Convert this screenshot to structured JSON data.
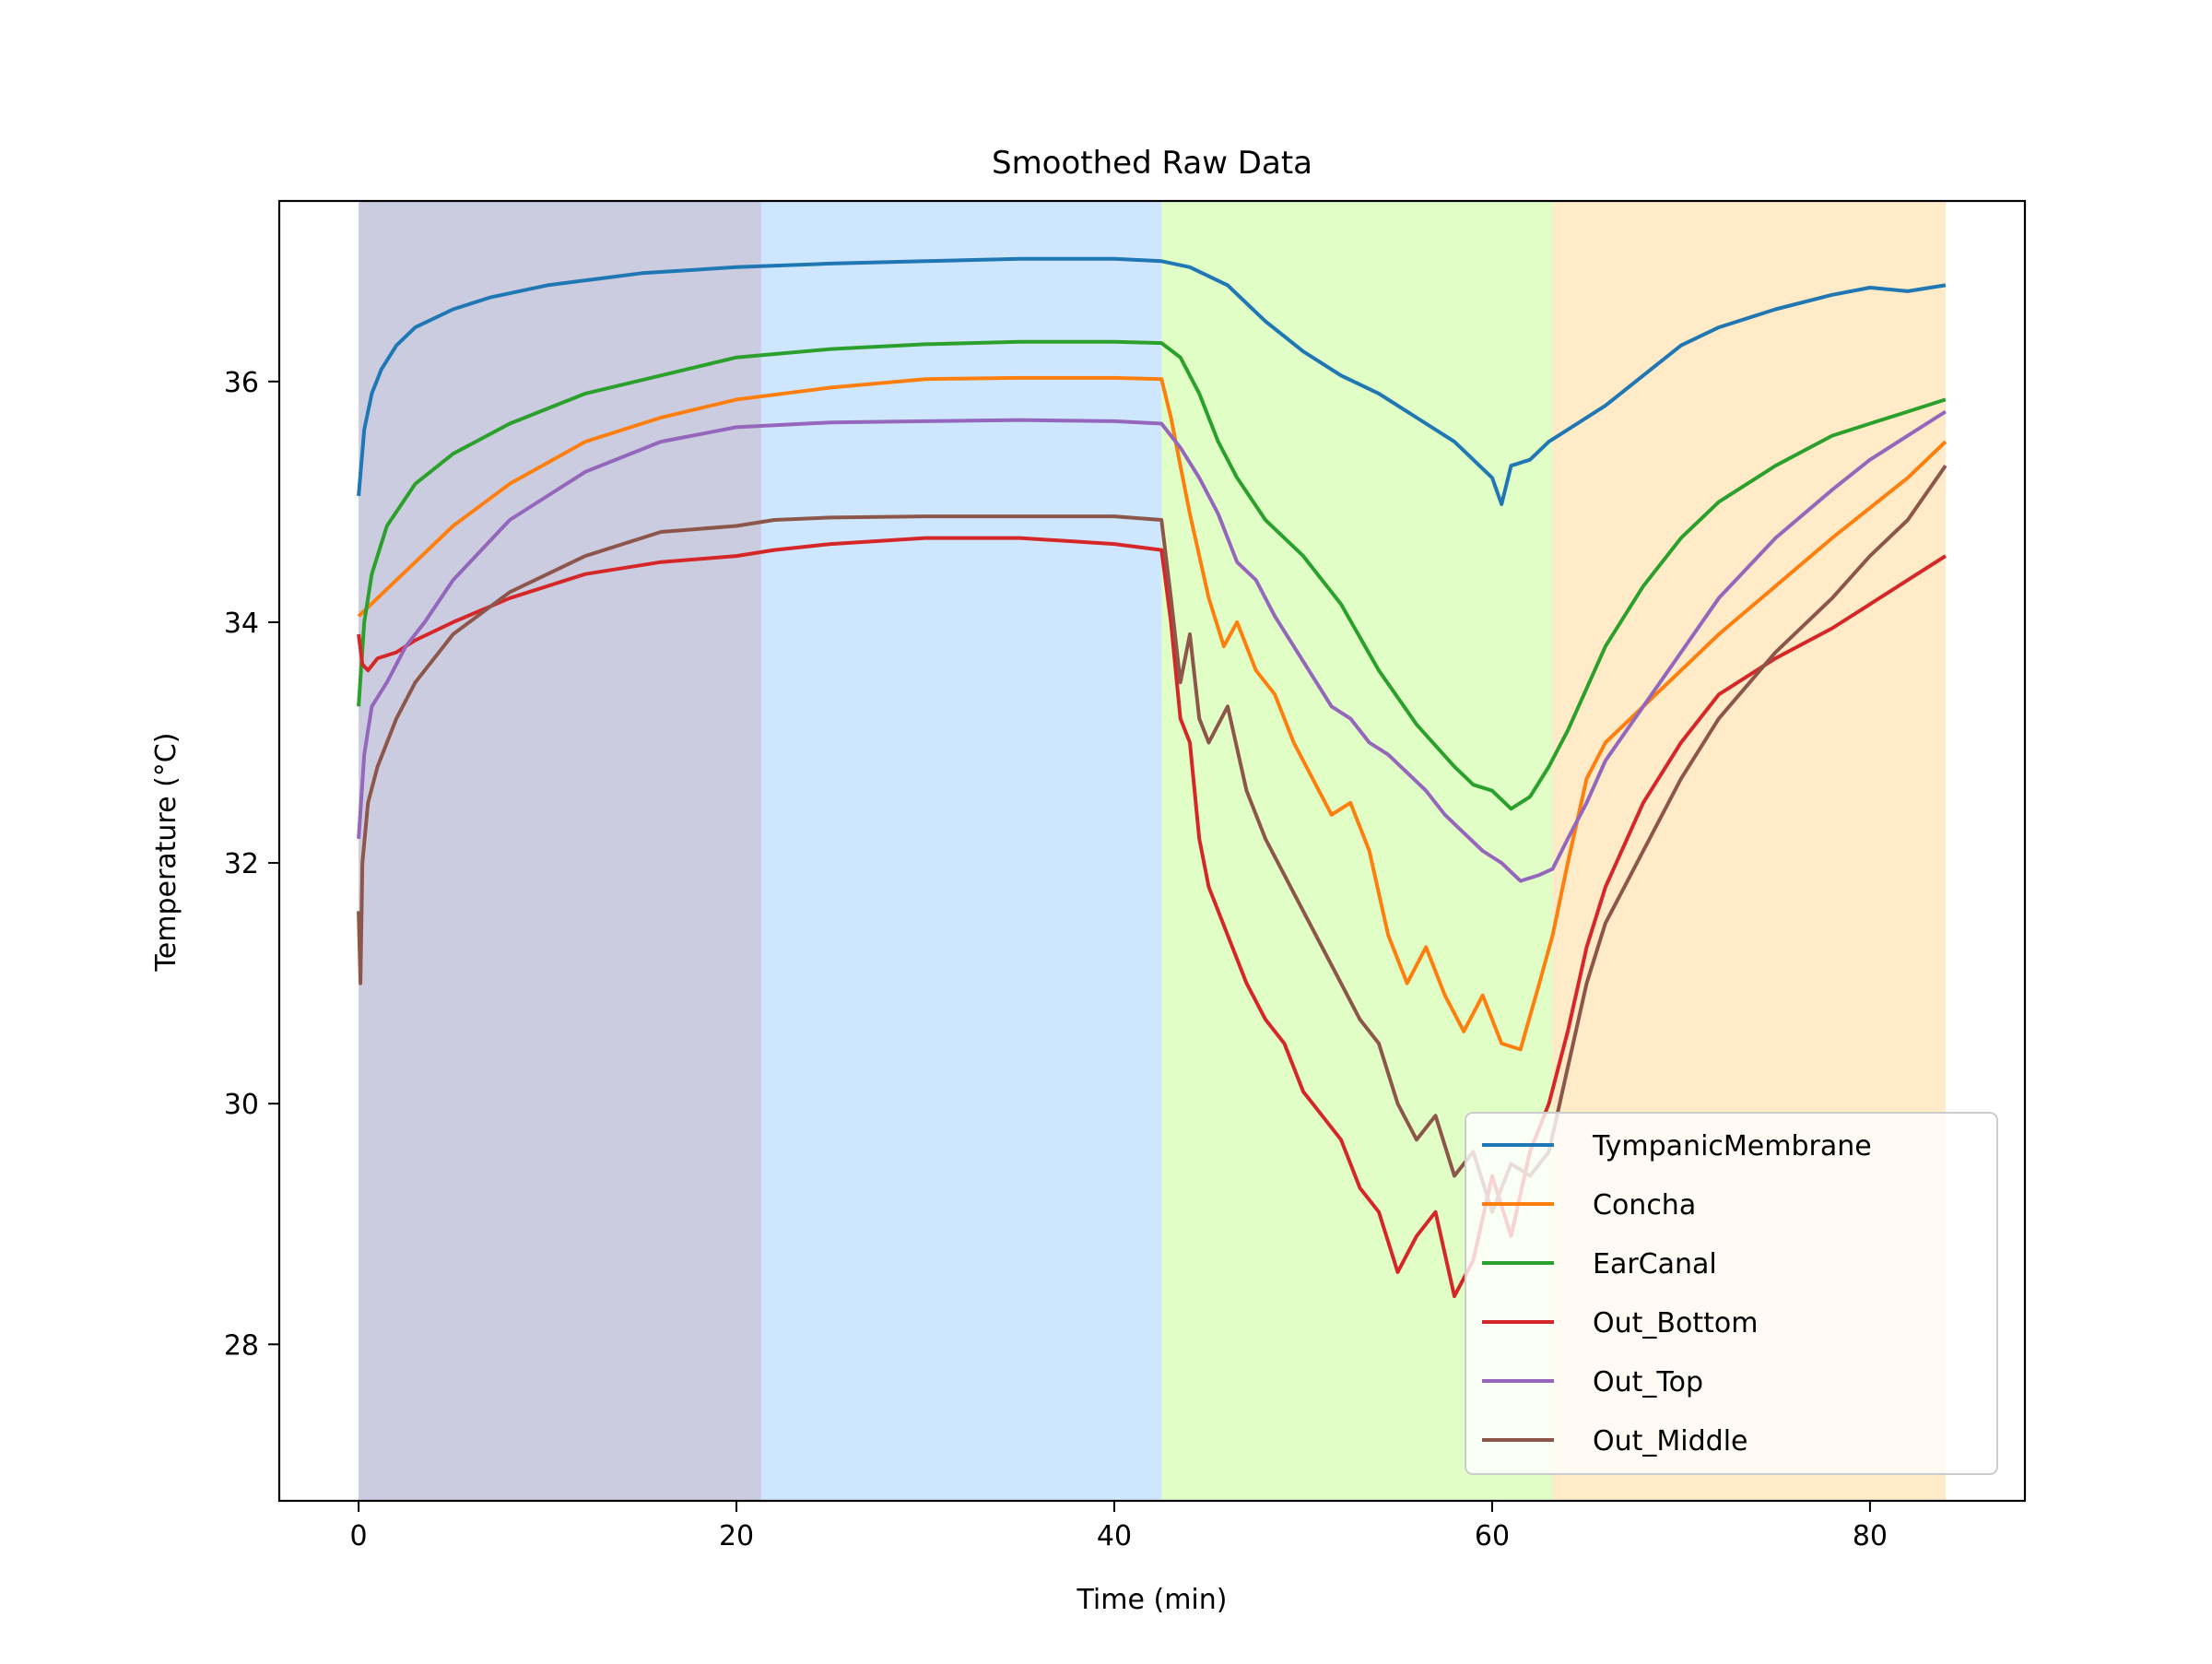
{
  "chart_data": {
    "type": "line",
    "title": "Smoothed Raw Data",
    "xlabel": "Time (min)",
    "ylabel": "Temperature (°C)",
    "xlim": [
      -4.2,
      88.2
    ],
    "ylim": [
      26.7,
      37.5
    ],
    "xticks": [
      0,
      20,
      40,
      60,
      80
    ],
    "xtick_labels": [
      "0",
      "20",
      "40",
      "60",
      "80"
    ],
    "yticks": [
      28,
      30,
      32,
      34,
      36
    ],
    "ytick_labels": [
      "28",
      "30",
      "32",
      "34",
      "36"
    ],
    "grid": false,
    "legend_position": "lower-right",
    "phase_bands": [
      {
        "x_start": 0.0,
        "x_end": 21.3,
        "color": "#191970",
        "alpha": 0.22
      },
      {
        "x_start": 21.3,
        "x_end": 42.5,
        "color": "#1e90ff",
        "alpha": 0.22
      },
      {
        "x_start": 42.5,
        "x_end": 63.2,
        "color": "#7cfc00",
        "alpha": 0.22
      },
      {
        "x_start": 63.2,
        "x_end": 84.0,
        "color": "#ffa500",
        "alpha": 0.22
      }
    ],
    "series": [
      {
        "name": "TympanicMembrane",
        "color": "#1f77b4",
        "x": [
          0,
          0.3,
          0.7,
          1.2,
          2,
          3,
          5,
          7,
          10,
          15,
          20,
          25,
          30,
          35,
          40,
          42.5,
          44,
          46,
          48,
          50,
          52,
          54,
          56,
          58,
          59,
          60,
          60.5,
          61,
          62,
          63,
          64,
          66,
          68,
          70,
          72,
          75,
          78,
          80,
          82,
          84
        ],
        "y": [
          35.05,
          35.6,
          35.9,
          36.1,
          36.3,
          36.45,
          36.6,
          36.7,
          36.8,
          36.9,
          36.95,
          36.98,
          37.0,
          37.02,
          37.02,
          37.0,
          36.95,
          36.8,
          36.5,
          36.25,
          36.05,
          35.9,
          35.7,
          35.5,
          35.35,
          35.2,
          34.98,
          35.3,
          35.35,
          35.5,
          35.6,
          35.8,
          36.05,
          36.3,
          36.45,
          36.6,
          36.72,
          36.78,
          36.75,
          36.8
        ]
      },
      {
        "name": "Concha",
        "color": "#ff7f0e",
        "x": [
          0,
          1,
          3,
          5,
          8,
          12,
          16,
          20,
          25,
          30,
          35,
          40,
          42.5,
          43,
          43.5,
          44,
          45,
          45.8,
          46.5,
          47.5,
          48.5,
          49.5,
          50.5,
          51.5,
          52.5,
          53.5,
          54.5,
          55.5,
          56.5,
          57.5,
          58.5,
          59.5,
          60.5,
          61.5,
          62.5,
          63.2,
          64,
          65,
          66,
          68,
          70,
          72,
          75,
          78,
          80,
          82,
          84
        ],
        "y": [
          34.05,
          34.2,
          34.5,
          34.8,
          35.15,
          35.5,
          35.7,
          35.85,
          35.95,
          36.02,
          36.03,
          36.03,
          36.02,
          35.7,
          35.3,
          34.9,
          34.2,
          33.8,
          34.0,
          33.6,
          33.4,
          33.0,
          32.7,
          32.4,
          32.5,
          32.1,
          31.4,
          31.0,
          31.3,
          30.9,
          30.6,
          30.9,
          30.5,
          30.45,
          31.0,
          31.4,
          32.0,
          32.7,
          33.0,
          33.3,
          33.6,
          33.9,
          34.3,
          34.7,
          34.95,
          35.2,
          35.5
        ]
      },
      {
        "name": "EarCanal",
        "color": "#2ca02c",
        "x": [
          0,
          0.3,
          0.7,
          1.5,
          3,
          5,
          8,
          12,
          16,
          20,
          25,
          30,
          35,
          40,
          42.5,
          43.5,
          44.5,
          45.5,
          46.5,
          48,
          50,
          52,
          54,
          56,
          58,
          59,
          60,
          61,
          62,
          63,
          64,
          65,
          66,
          68,
          70,
          72,
          75,
          78,
          80,
          82,
          84
        ],
        "y": [
          33.3,
          34.0,
          34.4,
          34.8,
          35.15,
          35.4,
          35.65,
          35.9,
          36.05,
          36.2,
          36.27,
          36.31,
          36.33,
          36.33,
          36.32,
          36.2,
          35.9,
          35.5,
          35.2,
          34.85,
          34.55,
          34.15,
          33.6,
          33.15,
          32.8,
          32.65,
          32.6,
          32.45,
          32.55,
          32.8,
          33.1,
          33.45,
          33.8,
          34.3,
          34.7,
          35.0,
          35.3,
          35.55,
          35.65,
          35.75,
          35.85
        ]
      },
      {
        "name": "Out_Bottom",
        "color": "#d62728",
        "x": [
          0,
          0.2,
          0.5,
          1,
          2,
          3,
          5,
          8,
          12,
          16,
          20,
          22,
          25,
          30,
          35,
          40,
          42.5,
          43,
          43.5,
          44,
          44.5,
          45,
          46,
          47,
          48,
          49,
          50,
          51,
          52,
          53,
          54,
          55,
          56,
          57,
          58,
          59,
          60,
          61,
          62,
          63,
          64,
          65,
          66,
          68,
          70,
          72,
          75,
          78,
          80,
          82,
          84
        ],
        "y": [
          33.9,
          33.65,
          33.6,
          33.7,
          33.75,
          33.85,
          34.0,
          34.2,
          34.4,
          34.5,
          34.55,
          34.6,
          34.65,
          34.7,
          34.7,
          34.65,
          34.6,
          34.0,
          33.2,
          33.0,
          32.2,
          31.8,
          31.4,
          31.0,
          30.7,
          30.5,
          30.1,
          29.9,
          29.7,
          29.3,
          29.1,
          28.6,
          28.9,
          29.1,
          28.4,
          28.7,
          29.4,
          28.9,
          29.6,
          30.0,
          30.6,
          31.3,
          31.8,
          32.5,
          33.0,
          33.4,
          33.7,
          33.95,
          34.15,
          34.35,
          34.55
        ]
      },
      {
        "name": "Out_Top",
        "color": "#9467bd",
        "x": [
          0,
          0.3,
          0.7,
          1.5,
          2.5,
          3.5,
          5,
          8,
          12,
          16,
          20,
          25,
          30,
          35,
          40,
          42.5,
          43.5,
          44.5,
          45.5,
          46.5,
          47.5,
          48.5,
          49.5,
          50.5,
          51.5,
          52.5,
          53.5,
          54.5,
          55.5,
          56.5,
          57.5,
          58.5,
          59.5,
          60.5,
          61.5,
          62.5,
          63.2,
          64,
          65,
          66,
          68,
          70,
          72,
          75,
          78,
          80,
          82,
          84
        ],
        "y": [
          32.2,
          32.9,
          33.3,
          33.5,
          33.8,
          34.0,
          34.35,
          34.85,
          35.25,
          35.5,
          35.62,
          35.66,
          35.67,
          35.68,
          35.67,
          35.65,
          35.45,
          35.2,
          34.9,
          34.5,
          34.35,
          34.05,
          33.8,
          33.55,
          33.3,
          33.2,
          33.0,
          32.9,
          32.75,
          32.6,
          32.4,
          32.25,
          32.1,
          32.0,
          31.85,
          31.9,
          31.95,
          32.2,
          32.5,
          32.85,
          33.3,
          33.75,
          34.2,
          34.7,
          35.1,
          35.35,
          35.55,
          35.75
        ]
      },
      {
        "name": "Out_Middle",
        "color": "#8c564b",
        "x": [
          0,
          0.1,
          0.2,
          0.5,
          1,
          2,
          3,
          5,
          8,
          12,
          16,
          20,
          22,
          25,
          30,
          35,
          40,
          42.5,
          43,
          43.5,
          44,
          44.5,
          45,
          46,
          47,
          48,
          49,
          50,
          51,
          52,
          53,
          54,
          55,
          56,
          57,
          58,
          59,
          60,
          61,
          62,
          63,
          64,
          65,
          66,
          68,
          70,
          72,
          75,
          78,
          80,
          82,
          84
        ],
        "y": [
          31.6,
          31.0,
          32.0,
          32.5,
          32.8,
          33.2,
          33.5,
          33.9,
          34.25,
          34.55,
          34.75,
          34.8,
          34.85,
          34.87,
          34.88,
          34.88,
          34.88,
          34.85,
          34.2,
          33.5,
          33.9,
          33.2,
          33.0,
          33.3,
          32.6,
          32.2,
          31.9,
          31.6,
          31.3,
          31.0,
          30.7,
          30.5,
          30.0,
          29.7,
          29.9,
          29.4,
          29.6,
          29.1,
          29.5,
          29.4,
          29.6,
          30.3,
          31.0,
          31.5,
          32.1,
          32.7,
          33.2,
          33.75,
          34.2,
          34.55,
          34.85,
          35.3
        ]
      }
    ]
  }
}
